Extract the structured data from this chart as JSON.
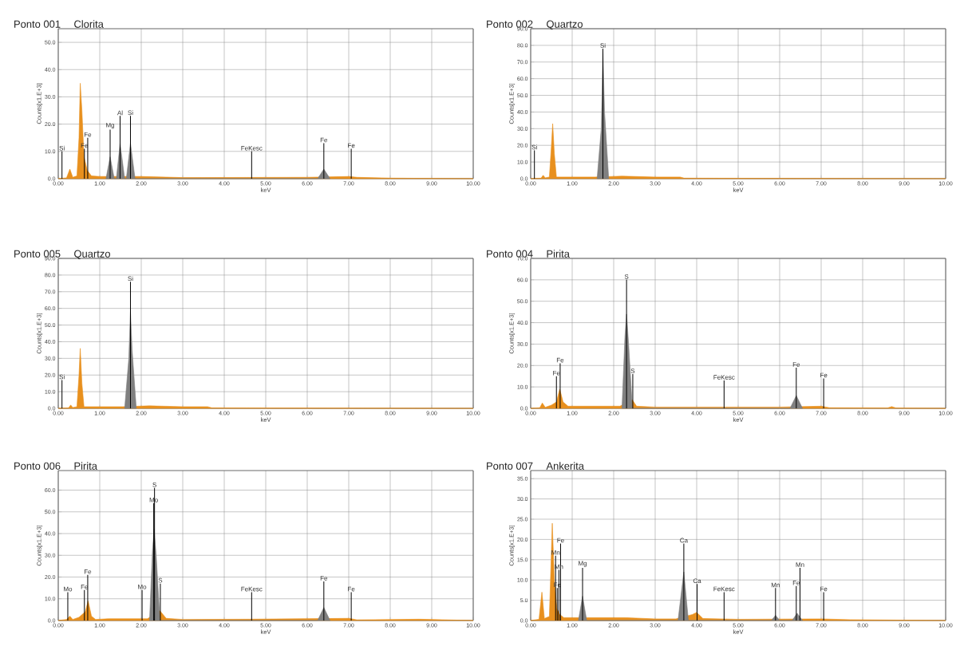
{
  "chart_data": [
    {
      "type": "area",
      "title": "Ponto 001",
      "subtitle": "Clorita",
      "xlabel": "keV",
      "ylabel": "Counts[x1.E+3]",
      "grid": true,
      "xlim": [
        0,
        10
      ],
      "ylim": [
        0,
        55
      ],
      "xticks": [
        {
          "value": 0,
          "label": "0.00"
        },
        {
          "value": 1,
          "label": "1.00"
        },
        {
          "value": 2,
          "label": "2.00"
        },
        {
          "value": 3,
          "label": "3.00"
        },
        {
          "value": 4,
          "label": "4.00"
        },
        {
          "value": 5,
          "label": "5.00"
        },
        {
          "value": 6,
          "label": "6.00"
        },
        {
          "value": 7,
          "label": "7.00"
        },
        {
          "value": 8,
          "label": "8.00"
        },
        {
          "value": 9,
          "label": "9.00"
        },
        {
          "value": 10,
          "label": "10.00"
        }
      ],
      "yticks": [
        {
          "value": 0,
          "label": "0.0"
        },
        {
          "value": 10,
          "label": "10.0"
        },
        {
          "value": 20,
          "label": "20.0"
        },
        {
          "value": 30,
          "label": "30.0"
        },
        {
          "value": 40,
          "label": "40.0"
        },
        {
          "value": 50,
          "label": "50.0"
        }
      ],
      "series": [
        {
          "color": "#e8901e",
          "x": [
            0,
            0.2,
            0.28,
            0.35,
            0.45,
            0.5,
            0.53,
            0.57,
            0.62,
            0.7,
            0.8,
            1.0,
            2.0,
            2.5,
            3.0,
            6.0,
            7.0,
            7.2,
            8.0,
            10.0
          ],
          "values": [
            0,
            0.3,
            3.5,
            0.5,
            1,
            15,
            35,
            25,
            8,
            3,
            1,
            0.8,
            0.8,
            0.6,
            0.4,
            0.5,
            0.8,
            0.5,
            0.2,
            0
          ]
        },
        {
          "color": "#808080",
          "x": [
            1.15,
            1.25,
            1.35,
            1.4,
            1.49,
            1.6,
            1.64,
            1.74,
            1.85,
            6.25,
            6.4,
            6.55
          ],
          "values": [
            0,
            8,
            0,
            0,
            13,
            0,
            0,
            13,
            0,
            0,
            3.5,
            0
          ]
        },
        {
          "type": "bar",
          "color": "#000000",
          "x": [
            0.09,
            0.63,
            0.71,
            1.25,
            1.49,
            1.74,
            4.66,
            6.4,
            7.06
          ],
          "values": [
            10,
            11,
            15,
            18,
            23,
            23,
            10,
            13,
            11
          ],
          "value_labels": [
            "Si",
            "Fe",
            "Fe",
            "Mg",
            "Al",
            "Si",
            "FeKesc",
            "Fe",
            "Fe"
          ]
        }
      ]
    },
    {
      "type": "area",
      "title": "Ponto 002",
      "subtitle": "Quartzo",
      "xlabel": "keV",
      "ylabel": "Counts[x1.E+3]",
      "grid": true,
      "xlim": [
        0,
        10
      ],
      "ylim": [
        0,
        90
      ],
      "xticks": [
        {
          "value": 0,
          "label": "0.00"
        },
        {
          "value": 1,
          "label": "1.00"
        },
        {
          "value": 2,
          "label": "2.00"
        },
        {
          "value": 3,
          "label": "3.00"
        },
        {
          "value": 4,
          "label": "4.00"
        },
        {
          "value": 5,
          "label": "5.00"
        },
        {
          "value": 6,
          "label": "6.00"
        },
        {
          "value": 7,
          "label": "7.00"
        },
        {
          "value": 8,
          "label": "8.00"
        },
        {
          "value": 9,
          "label": "9.00"
        },
        {
          "value": 10,
          "label": "10.00"
        }
      ],
      "yticks": [
        {
          "value": 0,
          "label": "0.0"
        },
        {
          "value": 10,
          "label": "10.0"
        },
        {
          "value": 20,
          "label": "20.0"
        },
        {
          "value": 30,
          "label": "30.0"
        },
        {
          "value": 40,
          "label": "40.0"
        },
        {
          "value": 50,
          "label": "50.0"
        },
        {
          "value": 60,
          "label": "60.0"
        },
        {
          "value": 70,
          "label": "70.0"
        },
        {
          "value": 80,
          "label": "80.0"
        },
        {
          "value": 90,
          "label": "90.0"
        }
      ],
      "series": [
        {
          "color": "#e8901e",
          "x": [
            0,
            0.25,
            0.3,
            0.35,
            0.45,
            0.5,
            0.53,
            0.57,
            0.62,
            1.0,
            1.55,
            2.2,
            3.0,
            3.6,
            3.7,
            10.0
          ],
          "values": [
            0,
            0.3,
            2,
            0.5,
            1,
            20,
            33,
            15,
            1,
            1,
            1,
            1.5,
            1,
            1,
            0.3,
            0
          ]
        },
        {
          "color": "#808080",
          "x": [
            1.6,
            1.7,
            1.74,
            1.78,
            1.88
          ],
          "values": [
            0,
            30,
            77,
            40,
            0
          ]
        },
        {
          "type": "bar",
          "color": "#000000",
          "x": [
            0.09,
            1.74
          ],
          "values": [
            17,
            78
          ],
          "value_labels": [
            "Si",
            "Si"
          ]
        }
      ]
    },
    {
      "type": "area",
      "title": "Ponto 005",
      "subtitle": "Quartzo",
      "xlabel": "keV",
      "ylabel": "Counts[x1.E+3]",
      "grid": true,
      "xlim": [
        0,
        10
      ],
      "ylim": [
        0,
        90
      ],
      "xticks": [
        {
          "value": 0,
          "label": "0.00"
        },
        {
          "value": 1,
          "label": "1.00"
        },
        {
          "value": 2,
          "label": "2.00"
        },
        {
          "value": 3,
          "label": "3.00"
        },
        {
          "value": 4,
          "label": "4.00"
        },
        {
          "value": 5,
          "label": "5.00"
        },
        {
          "value": 6,
          "label": "6.00"
        },
        {
          "value": 7,
          "label": "7.00"
        },
        {
          "value": 8,
          "label": "8.00"
        },
        {
          "value": 9,
          "label": "9.00"
        },
        {
          "value": 10,
          "label": "10.00"
        }
      ],
      "yticks": [
        {
          "value": 0,
          "label": "0.0"
        },
        {
          "value": 10,
          "label": "10.0"
        },
        {
          "value": 20,
          "label": "20.0"
        },
        {
          "value": 30,
          "label": "30.0"
        },
        {
          "value": 40,
          "label": "40.0"
        },
        {
          "value": 50,
          "label": "50.0"
        },
        {
          "value": 60,
          "label": "60.0"
        },
        {
          "value": 70,
          "label": "70.0"
        },
        {
          "value": 80,
          "label": "80.0"
        },
        {
          "value": 90,
          "label": "90.0"
        }
      ],
      "series": [
        {
          "color": "#e8901e",
          "x": [
            0,
            0.25,
            0.3,
            0.35,
            0.45,
            0.5,
            0.53,
            0.57,
            0.62,
            1.0,
            1.55,
            2.2,
            3.0,
            3.6,
            3.7,
            10.0
          ],
          "values": [
            0,
            0.3,
            2,
            0.5,
            1,
            20,
            36,
            15,
            1,
            1,
            1,
            1.5,
            1,
            1,
            0.3,
            0
          ]
        },
        {
          "color": "#808080",
          "x": [
            1.6,
            1.7,
            1.74,
            1.78,
            1.88
          ],
          "values": [
            0,
            30,
            58,
            35,
            0
          ]
        },
        {
          "type": "bar",
          "color": "#000000",
          "x": [
            0.09,
            1.74
          ],
          "values": [
            17,
            76
          ],
          "value_labels": [
            "Si",
            "Si"
          ]
        }
      ]
    },
    {
      "type": "area",
      "title": "Ponto 004",
      "subtitle": "Pirita",
      "xlabel": "keV",
      "ylabel": "Counts[x1.E+3]",
      "grid": true,
      "xlim": [
        0,
        10
      ],
      "ylim": [
        0,
        70
      ],
      "xticks": [
        {
          "value": 0,
          "label": "0.00"
        },
        {
          "value": 1,
          "label": "1.00"
        },
        {
          "value": 2,
          "label": "2.00"
        },
        {
          "value": 3,
          "label": "3.00"
        },
        {
          "value": 4,
          "label": "4.00"
        },
        {
          "value": 5,
          "label": "5.00"
        },
        {
          "value": 6,
          "label": "6.00"
        },
        {
          "value": 7,
          "label": "7.00"
        },
        {
          "value": 8,
          "label": "8.00"
        },
        {
          "value": 9,
          "label": "9.00"
        },
        {
          "value": 10,
          "label": "10.00"
        }
      ],
      "yticks": [
        {
          "value": 0,
          "label": "0.0"
        },
        {
          "value": 10,
          "label": "10.0"
        },
        {
          "value": 20,
          "label": "20.0"
        },
        {
          "value": 30,
          "label": "30.0"
        },
        {
          "value": 40,
          "label": "40.0"
        },
        {
          "value": 50,
          "label": "50.0"
        },
        {
          "value": 60,
          "label": "60.0"
        },
        {
          "value": 70,
          "label": "70.0"
        }
      ],
      "series": [
        {
          "color": "#e8901e",
          "x": [
            0,
            0.22,
            0.28,
            0.35,
            0.5,
            0.62,
            0.7,
            0.78,
            0.9,
            2.15,
            2.45,
            2.55,
            3.0,
            6.0,
            7.0,
            7.2,
            8.6,
            8.7,
            8.8,
            10.0
          ],
          "values": [
            0,
            0.3,
            2.5,
            0.5,
            1.5,
            3,
            9,
            3,
            1,
            1,
            4,
            1,
            0.6,
            0.6,
            1,
            0.3,
            0.2,
            0.8,
            0.2,
            0
          ]
        },
        {
          "color": "#808080",
          "x": [
            2.2,
            2.27,
            2.31,
            2.36,
            2.45,
            6.25,
            6.4,
            6.55
          ],
          "values": [
            0,
            33,
            44,
            30,
            0,
            0,
            6,
            0
          ]
        },
        {
          "type": "bar",
          "color": "#000000",
          "x": [
            0.62,
            0.71,
            2.31,
            2.46,
            4.66,
            6.4,
            7.06
          ],
          "values": [
            15,
            21,
            60,
            16,
            13,
            19,
            14
          ],
          "value_labels": [
            "Fe",
            "Fe",
            "S",
            "S",
            "FeKesc",
            "Fe",
            "Fe"
          ]
        }
      ]
    },
    {
      "type": "area",
      "title": "Ponto 006",
      "subtitle": "Pirita",
      "xlabel": "keV",
      "ylabel": "Counts[x1.E+3]",
      "grid": true,
      "xlim": [
        0,
        10
      ],
      "ylim": [
        0,
        69
      ],
      "xticks": [
        {
          "value": 0,
          "label": "0.00"
        },
        {
          "value": 1,
          "label": "1.00"
        },
        {
          "value": 2,
          "label": "2.00"
        },
        {
          "value": 3,
          "label": "3.00"
        },
        {
          "value": 4,
          "label": "4.00"
        },
        {
          "value": 5,
          "label": "5.00"
        },
        {
          "value": 6,
          "label": "6.00"
        },
        {
          "value": 7,
          "label": "7.00"
        },
        {
          "value": 8,
          "label": "8.00"
        },
        {
          "value": 9,
          "label": "9.00"
        },
        {
          "value": 10,
          "label": "10.00"
        }
      ],
      "yticks": [
        {
          "value": 0,
          "label": "0.0"
        },
        {
          "value": 10,
          "label": "10.0"
        },
        {
          "value": 20,
          "label": "20.0"
        },
        {
          "value": 30,
          "label": "30.0"
        },
        {
          "value": 40,
          "label": "40.0"
        },
        {
          "value": 50,
          "label": "50.0"
        },
        {
          "value": 60,
          "label": "60.0"
        }
      ],
      "series": [
        {
          "color": "#e8901e",
          "x": [
            0,
            0.2,
            0.28,
            0.35,
            0.5,
            0.65,
            0.72,
            0.8,
            0.9,
            1.2,
            2.15,
            2.45,
            2.6,
            3.0,
            4.6,
            7.0,
            7.2,
            8.7,
            10.0
          ],
          "values": [
            0,
            0.5,
            2,
            0.5,
            1.5,
            4,
            9,
            2,
            0.5,
            0.8,
            0.8,
            4.5,
            1,
            0.5,
            0.6,
            1,
            0.3,
            0.6,
            0
          ]
        },
        {
          "color": "#808080",
          "x": [
            2.2,
            2.27,
            2.31,
            2.36,
            2.45,
            6.25,
            6.4,
            6.55
          ],
          "values": [
            0,
            32,
            42,
            30,
            0,
            0,
            6,
            0
          ]
        },
        {
          "type": "bar",
          "color": "#000000",
          "x": [
            0.23,
            0.63,
            0.71,
            2.02,
            2.3,
            2.32,
            2.46,
            4.66,
            6.4,
            7.06
          ],
          "values": [
            13,
            14,
            21,
            14,
            54,
            61,
            17,
            13,
            18,
            13
          ],
          "value_labels": [
            "Mo",
            "Fe",
            "Fe",
            "Mo",
            "Mo",
            "S",
            "S",
            "FeKesc",
            "Fe",
            "Fe"
          ]
        }
      ]
    },
    {
      "type": "area",
      "title": "Ponto 007",
      "subtitle": "Ankerita",
      "xlabel": "keV",
      "ylabel": "Counts[x1.E+3]",
      "grid": true,
      "xlim": [
        0,
        10
      ],
      "ylim": [
        0,
        37
      ],
      "xticks": [
        {
          "value": 0,
          "label": "0.00"
        },
        {
          "value": 1,
          "label": "1.00"
        },
        {
          "value": 2,
          "label": "2.00"
        },
        {
          "value": 3,
          "label": "3.00"
        },
        {
          "value": 4,
          "label": "4.00"
        },
        {
          "value": 5,
          "label": "5.00"
        },
        {
          "value": 6,
          "label": "6.00"
        },
        {
          "value": 7,
          "label": "7.00"
        },
        {
          "value": 8,
          "label": "8.00"
        },
        {
          "value": 9,
          "label": "9.00"
        },
        {
          "value": 10,
          "label": "10.00"
        }
      ],
      "yticks": [
        {
          "value": 0,
          "label": "0.0"
        },
        {
          "value": 5,
          "label": "5.0"
        },
        {
          "value": 10,
          "label": "10.0"
        },
        {
          "value": 15,
          "label": "15.0"
        },
        {
          "value": 20,
          "label": "20.0"
        },
        {
          "value": 25,
          "label": "25.0"
        },
        {
          "value": 30,
          "label": "30.0"
        },
        {
          "value": 35,
          "label": "35.0"
        }
      ],
      "series": [
        {
          "color": "#e8901e",
          "x": [
            0,
            0.2,
            0.27,
            0.33,
            0.45,
            0.52,
            0.57,
            0.63,
            0.7,
            0.8,
            1.5,
            2.3,
            3.0,
            3.5,
            3.9,
            4.0,
            4.15,
            5.0,
            7.0,
            7.7,
            10.0
          ],
          "values": [
            0,
            0.3,
            7,
            0.5,
            1,
            24,
            10,
            3,
            1.5,
            0.7,
            0.7,
            0.7,
            0.4,
            0.4,
            1.5,
            2,
            0.5,
            0.3,
            0.4,
            0.2,
            0
          ]
        },
        {
          "color": "#808080",
          "x": [
            1.15,
            1.25,
            1.35,
            3.55,
            3.69,
            3.8,
            5.8,
            5.9,
            6.0,
            6.3,
            6.42,
            6.55
          ],
          "values": [
            0,
            6,
            0,
            0,
            12,
            0,
            0,
            1.3,
            0,
            0,
            1.8,
            0
          ]
        },
        {
          "type": "bar",
          "color": "#000000",
          "x": [
            0.6,
            0.64,
            0.68,
            0.72,
            1.25,
            3.69,
            4.01,
            4.66,
            5.9,
            6.4,
            6.49,
            7.06
          ],
          "values": [
            16,
            8,
            12.5,
            19,
            13,
            19,
            9,
            7,
            8,
            8.5,
            13,
            7
          ],
          "value_labels": [
            "Mn",
            "Fe",
            "Mn",
            "Fe",
            "Mg",
            "Ca",
            "Ca",
            "FeKesc",
            "Mn",
            "Fe",
            "Mn",
            "Fe"
          ]
        }
      ]
    }
  ]
}
